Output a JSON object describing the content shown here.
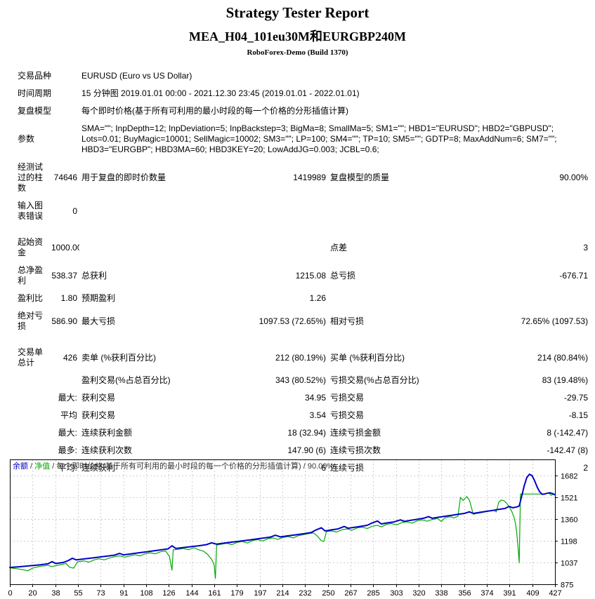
{
  "header": {
    "title": "Strategy Tester Report",
    "subtitle": "MEA_H04_101eu30M和EURGBP240M",
    "server": "RoboForex-Demo (Build 1370)"
  },
  "info_rows": [
    {
      "label": "交易品种",
      "value": "EURUSD (Euro vs US Dollar)"
    },
    {
      "label": "时间周期",
      "value": "15 分钟图 2019.01.01 00:00 - 2021.12.30 23:45 (2019.01.01 - 2022.01.01)"
    },
    {
      "label": "复盘模型",
      "value": "每个即时价格(基于所有可利用的最小时段的每一个价格的分形插值计算)"
    },
    {
      "label": "参数",
      "value": "SMA=\"\"; InpDepth=12; InpDeviation=5; InpBackstep=3; BigMa=8; SmallMa=5; SM1=\"\"; HBD1=\"EURUSD\"; HBD2=\"GBPUSD\"; Lots=0.01; BuyMagic=10001; SellMagic=10002; SM3=\"\"; LP=100; SM4=\"\"; TP=10; SM5=\"\"; GDTP=8; MaxAddNum=6; SM7=\"\"; HBD3=\"EURGBP\"; HBD3MA=60; HBD3KEY=20; LowAddJG=0.003; JCBL=0.6;"
    }
  ],
  "stats_rows": [
    {
      "gap": false,
      "cells": [
        "经测试过的柱数",
        "74646",
        "用于复盘的即时价数量",
        "1419989",
        "复盘模型的质量",
        "90.00%"
      ]
    },
    {
      "gap": false,
      "cells": [
        "输入图表错误",
        "0",
        "",
        "",
        "",
        ""
      ]
    },
    {
      "gap": true,
      "cells": [
        "起始资金",
        "1000.00",
        "",
        "",
        "点差",
        "3"
      ]
    },
    {
      "gap": false,
      "cells": [
        "总净盈利",
        "538.37",
        "总获利",
        "1215.08",
        "总亏损",
        "-676.71"
      ]
    },
    {
      "gap": false,
      "cells": [
        "盈利比",
        "1.80",
        "预期盈利",
        "1.26",
        "",
        ""
      ]
    },
    {
      "gap": false,
      "cells": [
        "绝对亏损",
        "586.90",
        "最大亏损",
        "1097.53 (72.65%)",
        "相对亏损",
        "72.65% (1097.53)"
      ]
    },
    {
      "gap": true,
      "cells": [
        "交易单总计",
        "426",
        "卖单 (%获利百分比)",
        "212 (80.19%)",
        "买单 (%获利百分比)",
        "214 (80.84%)"
      ]
    },
    {
      "gap": false,
      "cells": [
        "",
        "",
        "盈利交易(%占总百分比)",
        "343 (80.52%)",
        "亏损交易(%占总百分比)",
        "83 (19.48%)"
      ]
    },
    {
      "gap": false,
      "cells": [
        "",
        "最大:",
        "获利交易",
        "34.95",
        "亏损交易",
        "-29.75"
      ]
    },
    {
      "gap": false,
      "cells": [
        "",
        "平均",
        "获利交易",
        "3.54",
        "亏损交易",
        "-8.15"
      ]
    },
    {
      "gap": false,
      "cells": [
        "",
        "最大:",
        "连续获利金额",
        "18 (32.94)",
        "连续亏损金额",
        "8 (-142.47)"
      ]
    },
    {
      "gap": false,
      "cells": [
        "",
        "最多:",
        "连续获利次数",
        "147.90 (6)",
        "连续亏损次数",
        "-142.47 (8)"
      ]
    },
    {
      "gap": false,
      "cells": [
        "",
        "平均:",
        "连续获利",
        "6",
        "连续亏损",
        "2"
      ]
    }
  ],
  "chart_data": {
    "type": "line",
    "legend": {
      "balance_label": "余额",
      "equity_label": "净值",
      "model_note": "每个即时价格(基于所有可利用的最小时段的每一个价格的分形插值计算)",
      "quality": "90.00%",
      "separator": " / "
    },
    "colors": {
      "balance": "#0000C8",
      "equity": "#00AA00",
      "grid": "#CFCFCF",
      "border": "#000000",
      "legend_text": "#333333"
    },
    "x_ticks": [
      0,
      20,
      38,
      55,
      73,
      91,
      108,
      126,
      144,
      161,
      179,
      197,
      214,
      232,
      250,
      267,
      285,
      303,
      320,
      338,
      356,
      374,
      391,
      409,
      427
    ],
    "y_ticks": [
      1682,
      1521,
      1360,
      1198,
      1037,
      875
    ],
    "x_max": 427,
    "ylim": [
      875,
      1802
    ],
    "grid": true,
    "legend_position": "top-left",
    "series": [
      {
        "name": "净值",
        "role": "equity",
        "points": [
          [
            0,
            997
          ],
          [
            5,
            991
          ],
          [
            10,
            984
          ],
          [
            14,
            975
          ],
          [
            18,
            996
          ],
          [
            24,
            1009
          ],
          [
            30,
            1015
          ],
          [
            33,
            1006
          ],
          [
            36,
            1013
          ],
          [
            40,
            1021
          ],
          [
            44,
            1029
          ],
          [
            47,
            1001
          ],
          [
            50,
            995
          ],
          [
            53,
            1041
          ],
          [
            58,
            1049
          ],
          [
            62,
            1039
          ],
          [
            66,
            1056
          ],
          [
            70,
            1064
          ],
          [
            74,
            1056
          ],
          [
            78,
            1071
          ],
          [
            82,
            1079
          ],
          [
            86,
            1086
          ],
          [
            90,
            1076
          ],
          [
            94,
            1086
          ],
          [
            98,
            1094
          ],
          [
            102,
            1086
          ],
          [
            106,
            1101
          ],
          [
            110,
            1109
          ],
          [
            114,
            1101
          ],
          [
            118,
            1116
          ],
          [
            122,
            1123
          ],
          [
            125,
            1081
          ],
          [
            127,
            979
          ],
          [
            128,
            1131
          ],
          [
            132,
            1134
          ],
          [
            136,
            1141
          ],
          [
            140,
            1131
          ],
          [
            144,
            1146
          ],
          [
            148,
            1131
          ],
          [
            152,
            1119
          ],
          [
            155,
            1096
          ],
          [
            158,
            1061
          ],
          [
            160,
            1021
          ],
          [
            161,
            918
          ],
          [
            162,
            1166
          ],
          [
            166,
            1173
          ],
          [
            170,
            1179
          ],
          [
            174,
            1169
          ],
          [
            178,
            1186
          ],
          [
            182,
            1193
          ],
          [
            186,
            1181
          ],
          [
            190,
            1199
          ],
          [
            194,
            1207
          ],
          [
            198,
            1196
          ],
          [
            202,
            1213
          ],
          [
            206,
            1219
          ],
          [
            210,
            1209
          ],
          [
            214,
            1223
          ],
          [
            218,
            1229
          ],
          [
            222,
            1219
          ],
          [
            226,
            1236
          ],
          [
            230,
            1243
          ],
          [
            234,
            1251
          ],
          [
            238,
            1256
          ],
          [
            241,
            1231
          ],
          [
            244,
            1199
          ],
          [
            246,
            1193
          ],
          [
            248,
            1266
          ],
          [
            252,
            1271
          ],
          [
            256,
            1263
          ],
          [
            260,
            1279
          ],
          [
            264,
            1286
          ],
          [
            268,
            1276
          ],
          [
            272,
            1293
          ],
          [
            276,
            1299
          ],
          [
            280,
            1289
          ],
          [
            284,
            1306
          ],
          [
            288,
            1313
          ],
          [
            291,
            1301
          ],
          [
            295,
            1319
          ],
          [
            299,
            1326
          ],
          [
            303,
            1316
          ],
          [
            307,
            1333
          ],
          [
            311,
            1339
          ],
          [
            315,
            1329
          ],
          [
            319,
            1346
          ],
          [
            323,
            1353
          ],
          [
            327,
            1343
          ],
          [
            331,
            1356
          ],
          [
            335,
            1363
          ],
          [
            338,
            1341
          ],
          [
            341,
            1369
          ],
          [
            345,
            1376
          ],
          [
            348,
            1368
          ],
          [
            351,
            1380
          ],
          [
            353,
            1520
          ],
          [
            355,
            1498
          ],
          [
            358,
            1526
          ],
          [
            360,
            1500
          ],
          [
            363,
            1395
          ],
          [
            367,
            1403
          ],
          [
            371,
            1410
          ],
          [
            375,
            1418
          ],
          [
            379,
            1425
          ],
          [
            381,
            1412
          ],
          [
            383,
            1485
          ],
          [
            385,
            1500
          ],
          [
            387,
            1496
          ],
          [
            389,
            1478
          ],
          [
            391,
            1452
          ],
          [
            393,
            1420
          ],
          [
            395,
            1372
          ],
          [
            396,
            1330
          ],
          [
            397,
            1262
          ],
          [
            398,
            1160
          ],
          [
            399,
            1035
          ],
          [
            400,
            1545
          ],
          [
            405,
            1545
          ],
          [
            410,
            1545
          ],
          [
            415,
            1545
          ],
          [
            418,
            1543
          ],
          [
            420,
            1549
          ],
          [
            422,
            1553
          ],
          [
            424,
            1536
          ],
          [
            426,
            1543
          ],
          [
            427,
            1538
          ]
        ]
      },
      {
        "name": "余额",
        "role": "balance",
        "points": [
          [
            0,
            1000
          ],
          [
            6,
            1004
          ],
          [
            12,
            1009
          ],
          [
            18,
            1014
          ],
          [
            24,
            1020
          ],
          [
            30,
            1027
          ],
          [
            33,
            1043
          ],
          [
            36,
            1029
          ],
          [
            42,
            1037
          ],
          [
            46,
            1052
          ],
          [
            49,
            1068
          ],
          [
            52,
            1056
          ],
          [
            58,
            1063
          ],
          [
            64,
            1070
          ],
          [
            70,
            1077
          ],
          [
            76,
            1084
          ],
          [
            82,
            1091
          ],
          [
            86,
            1104
          ],
          [
            89,
            1093
          ],
          [
            95,
            1101
          ],
          [
            101,
            1109
          ],
          [
            107,
            1116
          ],
          [
            113,
            1124
          ],
          [
            119,
            1131
          ],
          [
            124,
            1138
          ],
          [
            127,
            1161
          ],
          [
            130,
            1141
          ],
          [
            136,
            1148
          ],
          [
            142,
            1154
          ],
          [
            148,
            1161
          ],
          [
            154,
            1169
          ],
          [
            158,
            1183
          ],
          [
            162,
            1173
          ],
          [
            168,
            1181
          ],
          [
            174,
            1188
          ],
          [
            180,
            1195
          ],
          [
            186,
            1202
          ],
          [
            192,
            1210
          ],
          [
            198,
            1217
          ],
          [
            204,
            1225
          ],
          [
            208,
            1239
          ],
          [
            212,
            1227
          ],
          [
            218,
            1235
          ],
          [
            224,
            1242
          ],
          [
            230,
            1250
          ],
          [
            236,
            1259
          ],
          [
            240,
            1279
          ],
          [
            244,
            1295
          ],
          [
            247,
            1271
          ],
          [
            252,
            1279
          ],
          [
            257,
            1286
          ],
          [
            262,
            1304
          ],
          [
            265,
            1291
          ],
          [
            270,
            1298
          ],
          [
            275,
            1305
          ],
          [
            280,
            1313
          ],
          [
            284,
            1331
          ],
          [
            288,
            1345
          ],
          [
            291,
            1323
          ],
          [
            296,
            1331
          ],
          [
            301,
            1338
          ],
          [
            306,
            1353
          ],
          [
            309,
            1342
          ],
          [
            314,
            1350
          ],
          [
            319,
            1357
          ],
          [
            324,
            1365
          ],
          [
            328,
            1377
          ],
          [
            331,
            1365
          ],
          [
            336,
            1373
          ],
          [
            341,
            1380
          ],
          [
            346,
            1387
          ],
          [
            351,
            1394
          ],
          [
            356,
            1401
          ],
          [
            360,
            1413
          ],
          [
            363,
            1401
          ],
          [
            368,
            1409
          ],
          [
            373,
            1416
          ],
          [
            378,
            1423
          ],
          [
            383,
            1431
          ],
          [
            388,
            1438
          ],
          [
            391,
            1453
          ],
          [
            394,
            1443
          ],
          [
            397,
            1449
          ],
          [
            399,
            1456
          ],
          [
            401,
            1530
          ],
          [
            403,
            1610
          ],
          [
            405,
            1668
          ],
          [
            407,
            1692
          ],
          [
            409,
            1682
          ],
          [
            411,
            1645
          ],
          [
            413,
            1598
          ],
          [
            415,
            1562
          ],
          [
            417,
            1543
          ],
          [
            419,
            1546
          ],
          [
            421,
            1551
          ],
          [
            423,
            1554
          ],
          [
            425,
            1549
          ],
          [
            427,
            1540
          ]
        ]
      }
    ]
  }
}
